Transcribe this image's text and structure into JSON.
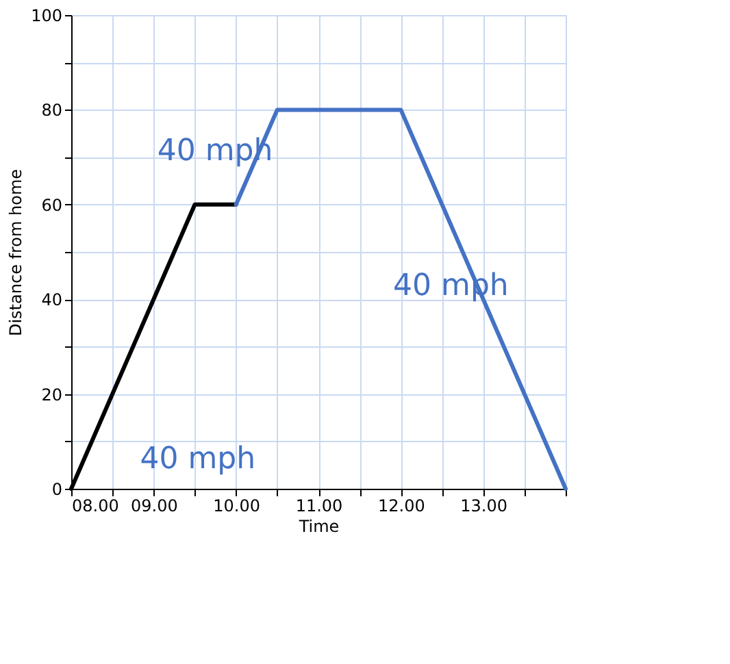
{
  "chart_data": {
    "type": "line",
    "xlabel": "Time",
    "ylabel": "Distance from home",
    "xlim": [
      8,
      14
    ],
    "ylim": [
      0,
      100
    ],
    "xticks": [
      {
        "value": 8,
        "label": "08.00"
      },
      {
        "value": 8.5,
        "label": null
      },
      {
        "value": 9,
        "label": "09.00"
      },
      {
        "value": 9.5,
        "label": null
      },
      {
        "value": 10,
        "label": "10.00"
      },
      {
        "value": 10.5,
        "label": null
      },
      {
        "value": 11,
        "label": "11.00"
      },
      {
        "value": 11.5,
        "label": null
      },
      {
        "value": 12,
        "label": "12.00"
      },
      {
        "value": 12.5,
        "label": null
      },
      {
        "value": 13,
        "label": "13.00"
      },
      {
        "value": 13.5,
        "label": null
      },
      {
        "value": 14,
        "label": null
      }
    ],
    "yticks": [
      0,
      {
        "value": 10,
        "label": null
      },
      20,
      {
        "value": 30,
        "label": null
      },
      40,
      {
        "value": 50,
        "label": null
      },
      60,
      {
        "value": 70,
        "label": null
      },
      80,
      {
        "value": 90,
        "label": null
      },
      100
    ],
    "grid": true,
    "marker": "none",
    "line_style": "solid",
    "series": [
      {
        "color": "#000000",
        "x": [
          8,
          9.5,
          10
        ],
        "values": [
          0,
          60,
          60
        ]
      },
      {
        "color": "#4472c4",
        "x": [
          10,
          10.5,
          12,
          14
        ],
        "values": [
          60,
          80,
          80,
          0
        ]
      }
    ],
    "annotations": [
      "40 mph",
      "40 mph",
      "40 mph"
    ]
  }
}
